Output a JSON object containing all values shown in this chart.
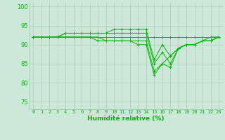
{
  "xlabel": "Humidité relative (%)",
  "background_color": "#cce8d8",
  "grid_color": "#aaccbb",
  "line_color": "#00bb00",
  "xlim": [
    -0.5,
    23.5
  ],
  "ylim": [
    73,
    101
  ],
  "yticks": [
    75,
    80,
    85,
    90,
    95,
    100
  ],
  "xticks": [
    0,
    1,
    2,
    3,
    4,
    5,
    6,
    7,
    8,
    9,
    10,
    11,
    12,
    13,
    14,
    15,
    16,
    17,
    18,
    19,
    20,
    21,
    22,
    23
  ],
  "series": [
    [
      92,
      92,
      92,
      92,
      92,
      92,
      92,
      92,
      92,
      92,
      92,
      92,
      92,
      92,
      92,
      92,
      92,
      92,
      92,
      92,
      92,
      92,
      92,
      92
    ],
    [
      92,
      92,
      92,
      92,
      93,
      93,
      93,
      93,
      93,
      93,
      94,
      94,
      94,
      94,
      94,
      86,
      90,
      87,
      89,
      90,
      90,
      91,
      92,
      92
    ],
    [
      92,
      92,
      92,
      92,
      93,
      93,
      93,
      93,
      93,
      93,
      93,
      93,
      93,
      93,
      93,
      85,
      88,
      85,
      89,
      90,
      90,
      91,
      91,
      92
    ],
    [
      92,
      92,
      92,
      92,
      92,
      92,
      92,
      92,
      92,
      91,
      91,
      91,
      91,
      91,
      91,
      83,
      85,
      84,
      89,
      90,
      90,
      91,
      91,
      92
    ],
    [
      92,
      92,
      92,
      92,
      92,
      92,
      92,
      92,
      91,
      91,
      91,
      91,
      91,
      90,
      90,
      82,
      85,
      87,
      89,
      90,
      90,
      91,
      91,
      92
    ]
  ],
  "xlabel_fontsize": 6.5,
  "ytick_fontsize": 6.0,
  "xtick_fontsize": 5.0
}
